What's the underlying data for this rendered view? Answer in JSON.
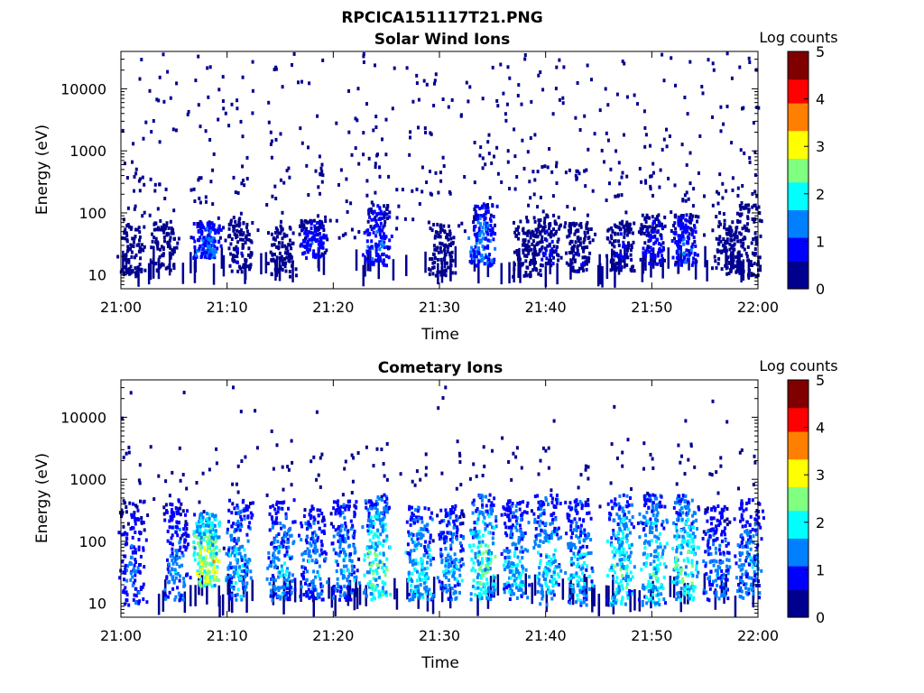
{
  "figure": {
    "title": "RPCICA151117T21.PNG"
  },
  "chart_data": [
    {
      "type": "heatmap",
      "title": "Solar Wind Ions",
      "xlabel": "Time",
      "ylabel": "Energy (eV)",
      "x_ticks": [
        "21:00",
        "21:10",
        "21:20",
        "21:30",
        "21:40",
        "21:50",
        "22:00"
      ],
      "x_range": [
        "21:00",
        "22:00"
      ],
      "y_scale": "log",
      "y_ticks": [
        "10",
        "100",
        "1000",
        "10000"
      ],
      "y_range": [
        6,
        40000
      ],
      "colorbar": {
        "label": "Log counts",
        "ticks": [
          "0",
          "1",
          "2",
          "3",
          "4",
          "5"
        ],
        "range": [
          0,
          5
        ]
      },
      "colormap": [
        "#00008f",
        "#0000ff",
        "#0080ff",
        "#00ffff",
        "#80ff80",
        "#ffff00",
        "#ff8000",
        "#ff0000",
        "#800000"
      ],
      "clusters": [
        {
          "time": "21:01",
          "emin": 10,
          "emax": 70,
          "level": 0.3
        },
        {
          "time": "21:04",
          "emin": 12,
          "emax": 80,
          "level": 0.4
        },
        {
          "time": "21:08",
          "emin": 20,
          "emax": 80,
          "level": 1.6
        },
        {
          "time": "21:11",
          "emin": 12,
          "emax": 90,
          "level": 0.6
        },
        {
          "time": "21:15",
          "emin": 10,
          "emax": 70,
          "level": 0.4
        },
        {
          "time": "21:18",
          "emin": 20,
          "emax": 80,
          "level": 1.2
        },
        {
          "time": "21:24",
          "emin": 15,
          "emax": 150,
          "level": 1.3
        },
        {
          "time": "21:30",
          "emin": 10,
          "emax": 70,
          "level": 0.5
        },
        {
          "time": "21:34",
          "emin": 15,
          "emax": 150,
          "level": 1.6
        },
        {
          "time": "21:38",
          "emin": 10,
          "emax": 80,
          "level": 0.6
        },
        {
          "time": "21:40",
          "emin": 15,
          "emax": 100,
          "level": 0.8
        },
        {
          "time": "21:43",
          "emin": 12,
          "emax": 80,
          "level": 0.7
        },
        {
          "time": "21:47",
          "emin": 12,
          "emax": 80,
          "level": 0.8
        },
        {
          "time": "21:50",
          "emin": 15,
          "emax": 100,
          "level": 1.0
        },
        {
          "time": "21:53",
          "emin": 15,
          "emax": 100,
          "level": 1.3
        },
        {
          "time": "21:57",
          "emin": 10,
          "emax": 80,
          "level": 0.5
        },
        {
          "time": "21:59",
          "emin": 10,
          "emax": 150,
          "level": 0.5
        }
      ]
    },
    {
      "type": "heatmap",
      "title": "Cometary Ions",
      "xlabel": "Time",
      "ylabel": "Energy (eV)",
      "x_ticks": [
        "21:00",
        "21:10",
        "21:20",
        "21:30",
        "21:40",
        "21:50",
        "22:00"
      ],
      "x_range": [
        "21:00",
        "22:00"
      ],
      "y_scale": "log",
      "y_ticks": [
        "10",
        "100",
        "1000",
        "10000"
      ],
      "y_range": [
        6,
        40000
      ],
      "colorbar": {
        "label": "Log counts",
        "ticks": [
          "0",
          "1",
          "2",
          "3",
          "4",
          "5"
        ],
        "range": [
          0,
          5
        ]
      },
      "colormap": [
        "#00008f",
        "#0000ff",
        "#0080ff",
        "#00ffff",
        "#80ff80",
        "#ffff00",
        "#ff8000",
        "#ff0000",
        "#800000"
      ],
      "clusters": [
        {
          "time": "21:01",
          "emin": 10,
          "emax": 500,
          "level": 1.4
        },
        {
          "time": "21:05",
          "emin": 12,
          "emax": 500,
          "level": 1.6
        },
        {
          "time": "21:08",
          "emin": 20,
          "emax": 300,
          "level": 3.3
        },
        {
          "time": "21:11",
          "emin": 12,
          "emax": 500,
          "level": 2.0
        },
        {
          "time": "21:15",
          "emin": 12,
          "emax": 500,
          "level": 2.0
        },
        {
          "time": "21:18",
          "emin": 12,
          "emax": 400,
          "level": 1.8
        },
        {
          "time": "21:21",
          "emin": 12,
          "emax": 500,
          "level": 1.9
        },
        {
          "time": "21:24",
          "emin": 12,
          "emax": 600,
          "level": 2.6
        },
        {
          "time": "21:28",
          "emin": 12,
          "emax": 400,
          "level": 2.2
        },
        {
          "time": "21:31",
          "emin": 12,
          "emax": 400,
          "level": 1.9
        },
        {
          "time": "21:34",
          "emin": 12,
          "emax": 600,
          "level": 2.5
        },
        {
          "time": "21:37",
          "emin": 12,
          "emax": 500,
          "level": 2.1
        },
        {
          "time": "21:40",
          "emin": 10,
          "emax": 600,
          "level": 2.2
        },
        {
          "time": "21:43",
          "emin": 10,
          "emax": 500,
          "level": 2.1
        },
        {
          "time": "21:47",
          "emin": 10,
          "emax": 600,
          "level": 2.4
        },
        {
          "time": "21:50",
          "emin": 10,
          "emax": 600,
          "level": 2.4
        },
        {
          "time": "21:53",
          "emin": 12,
          "emax": 600,
          "level": 2.6
        },
        {
          "time": "21:56",
          "emin": 12,
          "emax": 400,
          "level": 1.7
        },
        {
          "time": "21:59",
          "emin": 12,
          "emax": 500,
          "level": 1.8
        }
      ]
    }
  ]
}
